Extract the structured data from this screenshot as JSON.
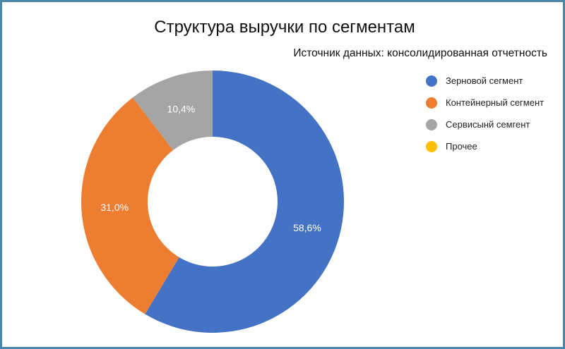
{
  "chart_data": {
    "type": "pie",
    "title": "Структура выручки по сегментам",
    "subtitle": "Источник данных: консолидированная отчетность",
    "donut": true,
    "legend_position": "right",
    "categories": [
      "Зерновой сегмент",
      "Контейнерный сегмент",
      "Сервисынй семгент",
      "Прочее"
    ],
    "values": [
      58.6,
      31.0,
      10.4,
      0.0
    ],
    "labels": [
      "58,6%",
      "31,0%",
      "10,4%",
      ""
    ],
    "colors": [
      "#4472c4",
      "#ed7d31",
      "#a5a5a5",
      "#ffc000"
    ]
  }
}
